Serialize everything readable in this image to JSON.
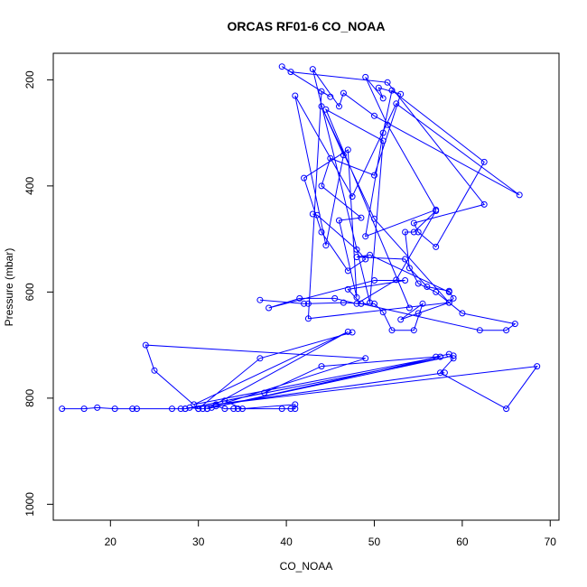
{
  "chart_data": {
    "type": "line",
    "title": "ORCAS RF01-6 CO_NOAA",
    "xlabel": "CO_NOAA",
    "ylabel": "Pressure (mbar)",
    "xlim": [
      13.5,
      71
    ],
    "ylim": [
      1030,
      150
    ],
    "y_reversed": true,
    "xticks": [
      20,
      30,
      40,
      50,
      60,
      70
    ],
    "yticks": [
      200,
      400,
      600,
      800,
      1000
    ],
    "grid": false,
    "color": "#0000ff",
    "series": [
      {
        "points": [
          [
            14.5,
            820
          ],
          [
            17.0,
            820
          ],
          [
            18.5,
            818
          ],
          [
            20.5,
            820
          ],
          [
            22.5,
            820
          ],
          [
            23.0,
            820
          ],
          [
            27.0,
            820
          ],
          [
            28.0,
            820
          ],
          [
            28.5,
            820
          ],
          [
            29.0,
            818
          ],
          [
            30.0,
            820
          ],
          [
            30.5,
            820
          ],
          [
            31.5,
            818
          ],
          [
            32.0,
            815
          ],
          [
            33.0,
            820
          ],
          [
            34.0,
            820
          ],
          [
            34.5,
            820
          ],
          [
            39.5,
            820
          ],
          [
            40.5,
            820
          ],
          [
            41.0,
            820
          ],
          [
            41.0,
            812
          ],
          [
            35.0,
            820
          ],
          [
            33.0,
            805
          ],
          [
            37.5,
            790
          ],
          [
            44.0,
            740
          ],
          [
            57.0,
            722
          ],
          [
            58.5,
            717
          ],
          [
            59.0,
            725
          ],
          [
            57.5,
            752
          ],
          [
            65.0,
            820
          ],
          [
            68.5,
            740
          ],
          [
            32.0,
            812
          ],
          [
            58.0,
            752
          ],
          [
            28.5,
            820
          ],
          [
            59.0,
            720
          ],
          [
            31.0,
            820
          ],
          [
            57.5,
            722
          ],
          [
            29.5,
            812
          ],
          [
            47.0,
            675
          ],
          [
            31.0,
            820
          ],
          [
            49.0,
            725
          ],
          [
            24.0,
            700
          ],
          [
            25.0,
            748
          ],
          [
            30.0,
            820
          ],
          [
            37.0,
            725
          ],
          [
            47.5,
            676
          ]
        ]
      },
      {
        "points": [
          [
            37.0,
            615
          ],
          [
            42.0,
            622
          ],
          [
            42.5,
            622
          ],
          [
            46.5,
            620
          ],
          [
            48.5,
            622
          ],
          [
            50.0,
            622
          ],
          [
            51.0,
            638
          ],
          [
            52.0,
            672
          ],
          [
            54.5,
            672
          ],
          [
            55.5,
            622
          ],
          [
            53.0,
            652
          ],
          [
            55.0,
            640
          ],
          [
            58.5,
            620
          ],
          [
            59.0,
            612
          ],
          [
            58.5,
            598
          ],
          [
            56.0,
            590
          ],
          [
            54.0,
            555
          ],
          [
            53.5,
            487
          ],
          [
            54.5,
            487
          ],
          [
            57.0,
            447
          ],
          [
            52.5,
            577
          ],
          [
            48.0,
            622
          ],
          [
            45.5,
            612
          ],
          [
            41.5,
            612
          ],
          [
            38.0,
            630
          ],
          [
            50.0,
            578
          ],
          [
            53.5,
            578
          ],
          [
            47.0,
            595
          ],
          [
            48.5,
            622
          ],
          [
            62.0,
            672
          ],
          [
            65.0,
            672
          ],
          [
            66.0,
            660
          ],
          [
            60.0,
            640
          ],
          [
            57.0,
            600
          ],
          [
            55.0,
            584
          ],
          [
            53.5,
            538
          ],
          [
            48.0,
            534
          ],
          [
            49.5,
            530
          ],
          [
            58.5,
            600
          ]
        ]
      },
      {
        "points": [
          [
            43.0,
            453
          ],
          [
            43.5,
            455
          ],
          [
            48.0,
            520
          ],
          [
            49.0,
            538
          ],
          [
            47.0,
            560
          ],
          [
            44.0,
            487
          ],
          [
            42.0,
            385
          ],
          [
            47.0,
            332
          ],
          [
            48.0,
            610
          ],
          [
            46.0,
            465
          ],
          [
            48.5,
            460
          ],
          [
            44.0,
            400
          ],
          [
            45.0,
            348
          ],
          [
            50.0,
            380
          ],
          [
            53.0,
            227
          ],
          [
            50.5,
            215
          ],
          [
            51.0,
            235
          ],
          [
            49.0,
            195
          ],
          [
            51.5,
            285
          ],
          [
            57.0,
            445
          ],
          [
            49.0,
            495
          ],
          [
            51.0,
            300
          ],
          [
            52.0,
            220
          ],
          [
            62.5,
            355
          ],
          [
            57.0,
            515
          ],
          [
            55.0,
            487
          ],
          [
            54.5,
            470
          ],
          [
            62.5,
            435
          ],
          [
            51.5,
            205
          ],
          [
            40.5,
            185
          ],
          [
            39.5,
            175
          ],
          [
            45.0,
            232
          ],
          [
            44.0,
            222
          ],
          [
            42.5,
            650
          ],
          [
            58.5,
            620
          ],
          [
            50.0,
            462
          ],
          [
            44.0,
            250
          ],
          [
            46.5,
            342
          ],
          [
            44.5,
            512
          ],
          [
            41.0,
            230
          ],
          [
            47.5,
            420
          ],
          [
            52.5,
            245
          ],
          [
            66.5,
            417
          ],
          [
            50.0,
            268
          ],
          [
            46.5,
            225
          ],
          [
            46.0,
            250
          ],
          [
            43.0,
            180
          ],
          [
            49.5,
            620
          ],
          [
            51.0,
            315
          ],
          [
            44.5,
            256
          ],
          [
            54.0,
            630
          ]
        ]
      }
    ]
  }
}
